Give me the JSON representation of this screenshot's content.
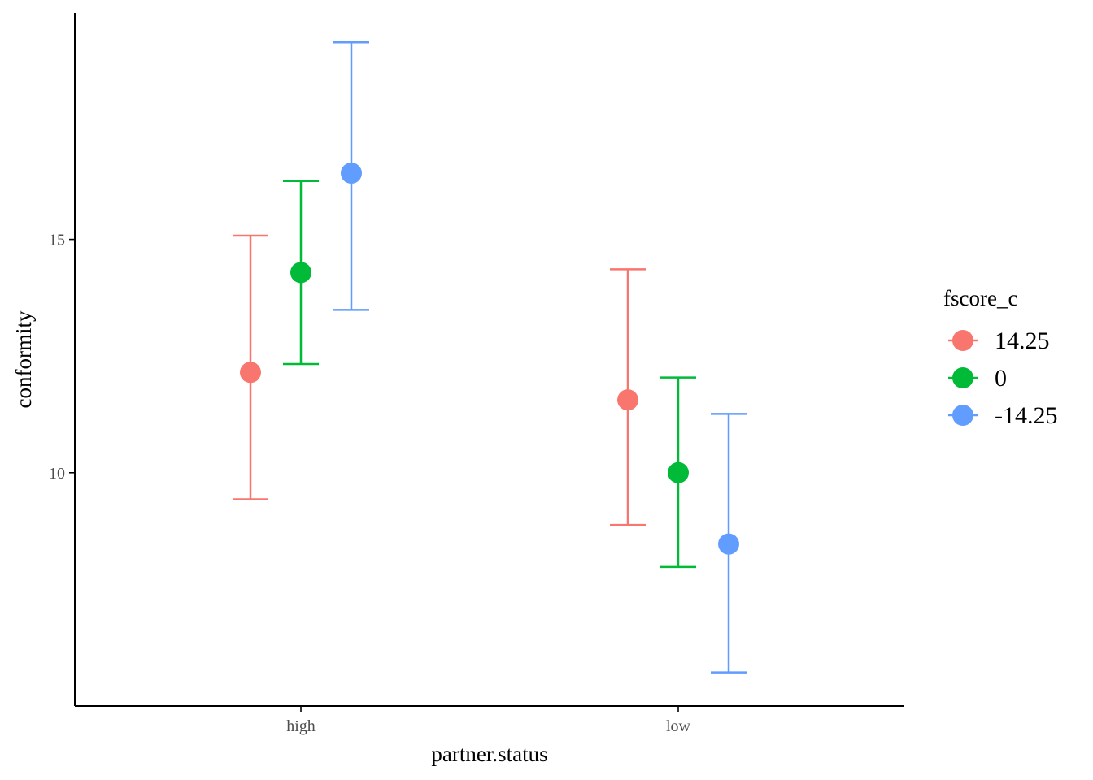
{
  "chart_data": {
    "type": "scatter",
    "xlabel": "partner.status",
    "ylabel": "conformity",
    "categories": [
      "high",
      "low"
    ],
    "y_ticks": [
      10,
      15
    ],
    "y_tick_labels": [
      "10",
      "15"
    ],
    "ylim": [
      5.0,
      19.85
    ],
    "grid": false,
    "legend": {
      "title": "fscore_c",
      "position": "right"
    },
    "series": [
      {
        "name": "14.25",
        "color": "#F8766D",
        "values": [
          12.15,
          11.56
        ],
        "lower": [
          9.43,
          8.88
        ],
        "upper": [
          15.08,
          14.36
        ]
      },
      {
        "name": "0",
        "color": "#00BA38",
        "values": [
          14.29,
          10.0
        ],
        "lower": [
          12.33,
          7.98
        ],
        "upper": [
          16.25,
          12.04
        ]
      },
      {
        "name": "-14.25",
        "color": "#619CFF",
        "values": [
          16.42,
          8.47
        ],
        "lower": [
          13.49,
          5.72
        ],
        "upper": [
          19.22,
          11.26
        ]
      }
    ]
  }
}
